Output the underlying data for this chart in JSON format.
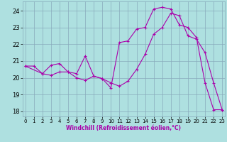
{
  "xlabel": "Windchill (Refroidissement éolien,°C)",
  "xlim": [
    -0.3,
    23.3
  ],
  "ylim": [
    17.7,
    24.55
  ],
  "yticks": [
    18,
    19,
    20,
    21,
    22,
    23,
    24
  ],
  "xticks": [
    0,
    1,
    2,
    3,
    4,
    5,
    6,
    7,
    8,
    9,
    10,
    11,
    12,
    13,
    14,
    15,
    16,
    17,
    18,
    19,
    20,
    21,
    22,
    23
  ],
  "bg_color": "#aee0e0",
  "grid_color": "#88aabb",
  "line_color": "#aa00aa",
  "line1_x": [
    0,
    1,
    2,
    3,
    4,
    5,
    6,
    7,
    8,
    9,
    10,
    11,
    12,
    13,
    14,
    15,
    16,
    17,
    18,
    19,
    20,
    21,
    22,
    23
  ],
  "line1_y": [
    20.7,
    20.7,
    20.25,
    20.15,
    20.35,
    20.35,
    20.0,
    19.85,
    20.1,
    19.95,
    19.7,
    19.5,
    19.8,
    20.5,
    21.4,
    22.6,
    23.0,
    23.85,
    23.7,
    22.5,
    22.3,
    21.5,
    19.7,
    18.1
  ],
  "line2_x": [
    0,
    2,
    3,
    4,
    5,
    6,
    7,
    8,
    9,
    10,
    11,
    12,
    13,
    14,
    15,
    16,
    17,
    18,
    19,
    20,
    21,
    22,
    23
  ],
  "line2_y": [
    20.7,
    20.25,
    20.75,
    20.85,
    20.35,
    20.25,
    21.3,
    20.1,
    19.95,
    19.4,
    22.1,
    22.2,
    22.9,
    23.0,
    24.1,
    24.2,
    24.1,
    23.15,
    23.0,
    22.4,
    19.7,
    18.1,
    18.1
  ]
}
